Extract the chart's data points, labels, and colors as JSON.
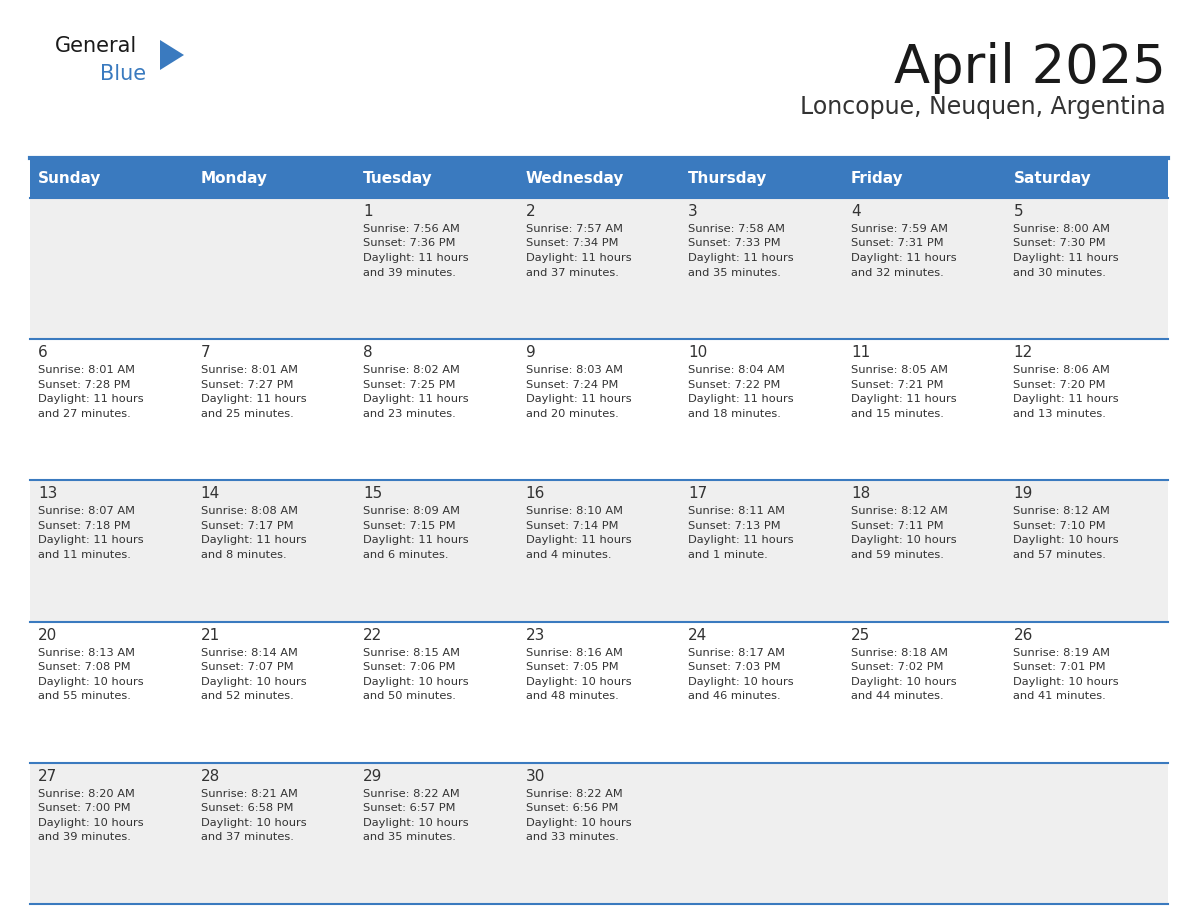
{
  "title": "April 2025",
  "subtitle": "Loncopue, Neuquen, Argentina",
  "header_color": "#3a7abf",
  "header_text_color": "#ffffff",
  "cell_bg_white": "#ffffff",
  "cell_bg_gray": "#efefef",
  "border_color": "#3a7abf",
  "cell_border_color": "#aaaaaa",
  "day_headers": [
    "Sunday",
    "Monday",
    "Tuesday",
    "Wednesday",
    "Thursday",
    "Friday",
    "Saturday"
  ],
  "title_color": "#1a1a1a",
  "subtitle_color": "#333333",
  "text_color": "#333333",
  "day_num_color": "#333333",
  "logo_general_color": "#1a1a1a",
  "logo_blue_color": "#3a7abf",
  "logo_triangle_color": "#3a7abf",
  "days": [
    {
      "num": "",
      "sunrise": "",
      "sunset": "",
      "daylight": ""
    },
    {
      "num": "",
      "sunrise": "",
      "sunset": "",
      "daylight": ""
    },
    {
      "num": "1",
      "sunrise": "Sunrise: 7:56 AM",
      "sunset": "Sunset: 7:36 PM",
      "daylight": "Daylight: 11 hours\nand 39 minutes."
    },
    {
      "num": "2",
      "sunrise": "Sunrise: 7:57 AM",
      "sunset": "Sunset: 7:34 PM",
      "daylight": "Daylight: 11 hours\nand 37 minutes."
    },
    {
      "num": "3",
      "sunrise": "Sunrise: 7:58 AM",
      "sunset": "Sunset: 7:33 PM",
      "daylight": "Daylight: 11 hours\nand 35 minutes."
    },
    {
      "num": "4",
      "sunrise": "Sunrise: 7:59 AM",
      "sunset": "Sunset: 7:31 PM",
      "daylight": "Daylight: 11 hours\nand 32 minutes."
    },
    {
      "num": "5",
      "sunrise": "Sunrise: 8:00 AM",
      "sunset": "Sunset: 7:30 PM",
      "daylight": "Daylight: 11 hours\nand 30 minutes."
    },
    {
      "num": "6",
      "sunrise": "Sunrise: 8:01 AM",
      "sunset": "Sunset: 7:28 PM",
      "daylight": "Daylight: 11 hours\nand 27 minutes."
    },
    {
      "num": "7",
      "sunrise": "Sunrise: 8:01 AM",
      "sunset": "Sunset: 7:27 PM",
      "daylight": "Daylight: 11 hours\nand 25 minutes."
    },
    {
      "num": "8",
      "sunrise": "Sunrise: 8:02 AM",
      "sunset": "Sunset: 7:25 PM",
      "daylight": "Daylight: 11 hours\nand 23 minutes."
    },
    {
      "num": "9",
      "sunrise": "Sunrise: 8:03 AM",
      "sunset": "Sunset: 7:24 PM",
      "daylight": "Daylight: 11 hours\nand 20 minutes."
    },
    {
      "num": "10",
      "sunrise": "Sunrise: 8:04 AM",
      "sunset": "Sunset: 7:22 PM",
      "daylight": "Daylight: 11 hours\nand 18 minutes."
    },
    {
      "num": "11",
      "sunrise": "Sunrise: 8:05 AM",
      "sunset": "Sunset: 7:21 PM",
      "daylight": "Daylight: 11 hours\nand 15 minutes."
    },
    {
      "num": "12",
      "sunrise": "Sunrise: 8:06 AM",
      "sunset": "Sunset: 7:20 PM",
      "daylight": "Daylight: 11 hours\nand 13 minutes."
    },
    {
      "num": "13",
      "sunrise": "Sunrise: 8:07 AM",
      "sunset": "Sunset: 7:18 PM",
      "daylight": "Daylight: 11 hours\nand 11 minutes."
    },
    {
      "num": "14",
      "sunrise": "Sunrise: 8:08 AM",
      "sunset": "Sunset: 7:17 PM",
      "daylight": "Daylight: 11 hours\nand 8 minutes."
    },
    {
      "num": "15",
      "sunrise": "Sunrise: 8:09 AM",
      "sunset": "Sunset: 7:15 PM",
      "daylight": "Daylight: 11 hours\nand 6 minutes."
    },
    {
      "num": "16",
      "sunrise": "Sunrise: 8:10 AM",
      "sunset": "Sunset: 7:14 PM",
      "daylight": "Daylight: 11 hours\nand 4 minutes."
    },
    {
      "num": "17",
      "sunrise": "Sunrise: 8:11 AM",
      "sunset": "Sunset: 7:13 PM",
      "daylight": "Daylight: 11 hours\nand 1 minute."
    },
    {
      "num": "18",
      "sunrise": "Sunrise: 8:12 AM",
      "sunset": "Sunset: 7:11 PM",
      "daylight": "Daylight: 10 hours\nand 59 minutes."
    },
    {
      "num": "19",
      "sunrise": "Sunrise: 8:12 AM",
      "sunset": "Sunset: 7:10 PM",
      "daylight": "Daylight: 10 hours\nand 57 minutes."
    },
    {
      "num": "20",
      "sunrise": "Sunrise: 8:13 AM",
      "sunset": "Sunset: 7:08 PM",
      "daylight": "Daylight: 10 hours\nand 55 minutes."
    },
    {
      "num": "21",
      "sunrise": "Sunrise: 8:14 AM",
      "sunset": "Sunset: 7:07 PM",
      "daylight": "Daylight: 10 hours\nand 52 minutes."
    },
    {
      "num": "22",
      "sunrise": "Sunrise: 8:15 AM",
      "sunset": "Sunset: 7:06 PM",
      "daylight": "Daylight: 10 hours\nand 50 minutes."
    },
    {
      "num": "23",
      "sunrise": "Sunrise: 8:16 AM",
      "sunset": "Sunset: 7:05 PM",
      "daylight": "Daylight: 10 hours\nand 48 minutes."
    },
    {
      "num": "24",
      "sunrise": "Sunrise: 8:17 AM",
      "sunset": "Sunset: 7:03 PM",
      "daylight": "Daylight: 10 hours\nand 46 minutes."
    },
    {
      "num": "25",
      "sunrise": "Sunrise: 8:18 AM",
      "sunset": "Sunset: 7:02 PM",
      "daylight": "Daylight: 10 hours\nand 44 minutes."
    },
    {
      "num": "26",
      "sunrise": "Sunrise: 8:19 AM",
      "sunset": "Sunset: 7:01 PM",
      "daylight": "Daylight: 10 hours\nand 41 minutes."
    },
    {
      "num": "27",
      "sunrise": "Sunrise: 8:20 AM",
      "sunset": "Sunset: 7:00 PM",
      "daylight": "Daylight: 10 hours\nand 39 minutes."
    },
    {
      "num": "28",
      "sunrise": "Sunrise: 8:21 AM",
      "sunset": "Sunset: 6:58 PM",
      "daylight": "Daylight: 10 hours\nand 37 minutes."
    },
    {
      "num": "29",
      "sunrise": "Sunrise: 8:22 AM",
      "sunset": "Sunset: 6:57 PM",
      "daylight": "Daylight: 10 hours\nand 35 minutes."
    },
    {
      "num": "30",
      "sunrise": "Sunrise: 8:22 AM",
      "sunset": "Sunset: 6:56 PM",
      "daylight": "Daylight: 10 hours\nand 33 minutes."
    },
    {
      "num": "",
      "sunrise": "",
      "sunset": "",
      "daylight": ""
    },
    {
      "num": "",
      "sunrise": "",
      "sunset": "",
      "daylight": ""
    },
    {
      "num": "",
      "sunrise": "",
      "sunset": "",
      "daylight": ""
    }
  ]
}
